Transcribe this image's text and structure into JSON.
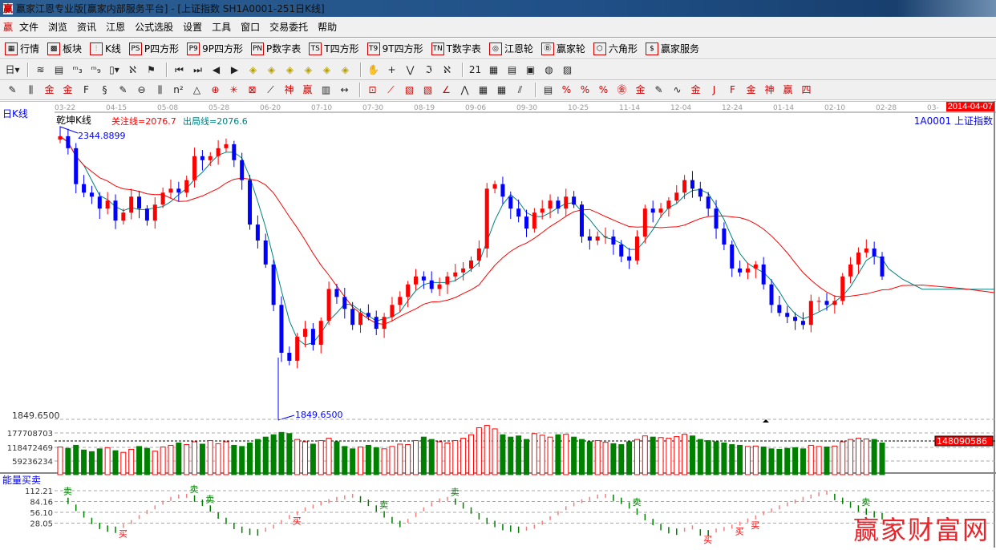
{
  "window": {
    "title": "赢家江恩专业版[赢家内部服务平台] - [上证指数  SH1A0001-251日K线]",
    "logo": "赢"
  },
  "menu": {
    "logo": "赢",
    "items": [
      "文件",
      "浏览",
      "资讯",
      "江恩",
      "公式选股",
      "设置",
      "工具",
      "窗口",
      "交易委托",
      "帮助"
    ]
  },
  "toolbar1": [
    {
      "icon": "quote-grid-icon",
      "glyph": "▦",
      "label": "行情"
    },
    {
      "icon": "sector-icon",
      "glyph": "▩",
      "label": "板块"
    },
    {
      "icon": "kline-icon",
      "glyph": "⫶",
      "label": "K线"
    },
    {
      "icon": "ps-icon",
      "glyph": "PS",
      "label": "P四方形"
    },
    {
      "icon": "p9-icon",
      "glyph": "P9",
      "label": "9P四方形"
    },
    {
      "icon": "pn-icon",
      "glyph": "PN",
      "label": "P数字表"
    },
    {
      "icon": "ts-icon",
      "glyph": "TS",
      "label": "T四方形"
    },
    {
      "icon": "t9-icon",
      "glyph": "T9",
      "label": "9T四方形"
    },
    {
      "icon": "tn-icon",
      "glyph": "TN",
      "label": "T数字表"
    },
    {
      "icon": "gann-wheel-icon",
      "glyph": "◎",
      "label": "江恩轮"
    },
    {
      "icon": "big-wheel-icon",
      "glyph": "Ⓑ",
      "label": "赢家轮"
    },
    {
      "icon": "hexagon-icon",
      "glyph": "⬡",
      "label": "六角形"
    },
    {
      "icon": "dollar-icon",
      "glyph": "$",
      "label": "赢家服务"
    }
  ],
  "toolbar2": [
    {
      "icon": "period-day-icon",
      "glyph": "日▾"
    },
    {
      "sep": true
    },
    {
      "icon": "chart-style-icon",
      "glyph": "≋"
    },
    {
      "icon": "notes-icon",
      "glyph": "▤"
    },
    {
      "icon": "wave3-icon",
      "glyph": "ᵐ₃"
    },
    {
      "icon": "wave9-icon",
      "glyph": "ᵐ₉"
    },
    {
      "icon": "candle-type-icon",
      "glyph": "▯▾"
    },
    {
      "icon": "map-icon",
      "glyph": "ℵ"
    },
    {
      "icon": "flag-icon",
      "glyph": "⚑"
    },
    {
      "sep": true
    },
    {
      "icon": "first-icon",
      "glyph": "⏮"
    },
    {
      "icon": "last-icon",
      "glyph": "⏭"
    },
    {
      "icon": "prev-icon",
      "glyph": "◀"
    },
    {
      "icon": "next-icon",
      "glyph": "▶"
    },
    {
      "icon": "shift-left-icon",
      "glyph": "◈"
    },
    {
      "icon": "shift-right-icon",
      "glyph": "◈"
    },
    {
      "icon": "zoom-h-icon",
      "glyph": "◈"
    },
    {
      "icon": "shrink-h-icon",
      "glyph": "◈"
    },
    {
      "icon": "zoom-all-icon",
      "glyph": "◈"
    },
    {
      "icon": "zoom-v-icon",
      "glyph": "◈"
    },
    {
      "sep": true
    },
    {
      "icon": "hand-icon",
      "glyph": "✋"
    },
    {
      "icon": "crosshair-icon",
      "glyph": "+"
    },
    {
      "icon": "wave-mark-icon",
      "glyph": "⋁"
    },
    {
      "icon": "formula-icon",
      "glyph": "ℑ"
    },
    {
      "icon": "pattern-icon",
      "glyph": "ℵ"
    },
    {
      "sep": true
    },
    {
      "icon": "calendar-icon",
      "glyph": "21"
    },
    {
      "icon": "calculator-icon",
      "glyph": "▦"
    },
    {
      "icon": "document-icon",
      "glyph": "▤"
    },
    {
      "icon": "save-icon",
      "glyph": "▣"
    },
    {
      "icon": "network-icon",
      "glyph": "◍"
    },
    {
      "icon": "print-icon",
      "glyph": "▨"
    }
  ],
  "toolbar3": [
    {
      "icon": "pen-icon",
      "glyph": "✎"
    },
    {
      "icon": "parallel-lines-icon",
      "glyph": "⫼"
    },
    {
      "icon": "gold-lines-icon",
      "glyph": "金"
    },
    {
      "icon": "gold-lines2-icon",
      "glyph": "金"
    },
    {
      "icon": "fib-lines-icon",
      "glyph": "F"
    },
    {
      "icon": "spiral-lines-icon",
      "glyph": "§"
    },
    {
      "icon": "pen-ruler-icon",
      "glyph": "✎"
    },
    {
      "icon": "circle-lines-icon",
      "glyph": "⊖"
    },
    {
      "icon": "quad-lines-icon",
      "glyph": "⫼"
    },
    {
      "icon": "n2-lines-icon",
      "glyph": "n²"
    },
    {
      "icon": "triangle-icon",
      "glyph": "△"
    },
    {
      "icon": "target-icon",
      "glyph": "⊕"
    },
    {
      "icon": "web-icon",
      "glyph": "✳"
    },
    {
      "icon": "web-grid-icon",
      "glyph": "⊠"
    },
    {
      "icon": "angle-line-icon",
      "glyph": "⟋"
    },
    {
      "icon": "shen-lines-icon",
      "glyph": "神"
    },
    {
      "icon": "ying-lines-icon",
      "glyph": "赢"
    },
    {
      "icon": "ruler-123-icon",
      "glyph": "▥"
    },
    {
      "icon": "measure-icon",
      "glyph": "↔"
    },
    {
      "sep": true
    },
    {
      "icon": "box-icon",
      "glyph": "⊡"
    },
    {
      "icon": "fan-icon",
      "glyph": "⟋"
    },
    {
      "icon": "gann-box-icon",
      "glyph": "▧"
    },
    {
      "icon": "gann-box2-icon",
      "glyph": "▧"
    },
    {
      "icon": "angle-fan-icon",
      "glyph": "∠"
    },
    {
      "icon": "zigzag-icon",
      "glyph": "⋀"
    },
    {
      "icon": "grid-icon",
      "glyph": "▦"
    },
    {
      "icon": "grid2-icon",
      "glyph": "▦"
    },
    {
      "icon": "channel-icon",
      "glyph": "⫽"
    },
    {
      "sep": true
    },
    {
      "icon": "scale-icon",
      "glyph": "▤"
    },
    {
      "icon": "percent-fan-icon",
      "glyph": "%"
    },
    {
      "icon": "percent-icon",
      "glyph": "%"
    },
    {
      "icon": "percent-lines-icon",
      "glyph": "%"
    },
    {
      "icon": "gold-circle-icon",
      "glyph": "㊎"
    },
    {
      "icon": "gold-lines3-icon",
      "glyph": "金"
    },
    {
      "icon": "pen-bar-icon",
      "glyph": "✎"
    },
    {
      "icon": "sine-icon",
      "glyph": "∿"
    },
    {
      "icon": "gold-red-icon",
      "glyph": "金"
    },
    {
      "icon": "j-fan-icon",
      "glyph": "J"
    },
    {
      "icon": "f-fan-icon",
      "glyph": "F"
    },
    {
      "icon": "gold-fan-icon",
      "glyph": "金"
    },
    {
      "icon": "shen-fan-icon",
      "glyph": "神"
    },
    {
      "icon": "ying-fan-icon",
      "glyph": "赢"
    },
    {
      "icon": "four-fan-icon",
      "glyph": "四"
    }
  ],
  "chart": {
    "period_label": "日K线",
    "indicator_name": "乾坤K线",
    "focus_line": "关注线=2076.7",
    "exit_line": "出局线=2076.6",
    "symbol_label": "1A0001  上证指数",
    "current_date": "2014-04-07",
    "date_ticks": [
      "03-22",
      "04-15",
      "05-08",
      "05-28",
      "06-20",
      "07-10",
      "07-30",
      "08-19",
      "09-06",
      "09-30",
      "10-25",
      "11-14",
      "12-04",
      "12-24",
      "01-14",
      "02-10",
      "02-28",
      "03-"
    ],
    "high_label": "2344.8899",
    "low_label": "1849.6500",
    "price_axis_label": "1849.6500",
    "colors": {
      "up": "#ff0000",
      "down": "#0000ff",
      "ma_short": "#008080",
      "ma_long": "#ff0000",
      "title_bg": "#1f4f86"
    }
  },
  "chart_data": [
    {
      "type": "candlestick",
      "title": "乾坤K线",
      "ylim": [
        1849.65,
        2344.89
      ],
      "high": 2344.8899,
      "low": 1849.65,
      "close": [
        2345,
        2324,
        2261,
        2246,
        2239,
        2218,
        2232,
        2197,
        2211,
        2239,
        2218,
        2197,
        2225,
        2246,
        2253,
        2246,
        2268,
        2310,
        2303,
        2310,
        2324,
        2331,
        2303,
        2268,
        2190,
        2162,
        2120,
        2049,
        1965,
        1951,
        1993,
        2007,
        1979,
        2021,
        2077,
        2063,
        2042,
        2014,
        2035,
        2028,
        2007,
        2028,
        2049,
        2063,
        2085,
        2099,
        2092,
        2077,
        2085,
        2099,
        2106,
        2113,
        2127,
        2148,
        2253,
        2261,
        2239,
        2218,
        2204,
        2183,
        2211,
        2218,
        2232,
        2218,
        2239,
        2225,
        2169,
        2162,
        2169,
        2169,
        2155,
        2134,
        2127,
        2169,
        2218,
        2211,
        2218,
        2232,
        2246,
        2268,
        2253,
        2239,
        2218,
        2183,
        2155,
        2113,
        2106,
        2113,
        2120,
        2085,
        2049,
        2035,
        2028,
        2021,
        2014,
        2056,
        2056,
        2049,
        2056,
        2099,
        2120,
        2141,
        2148,
        2134,
        2099
      ],
      "ma_lines": [
        {
          "name": "出局线",
          "value": 2076.6
        },
        {
          "name": "关注线",
          "value": 2076.7
        }
      ]
    },
    {
      "type": "bar",
      "title": "volume",
      "yticks": [
        177708703,
        118472469,
        59236234
      ],
      "current": 148090586,
      "values": [
        118,
        112,
        125,
        105,
        98,
        110,
        115,
        102,
        95,
        108,
        120,
        112,
        100,
        118,
        125,
        135,
        128,
        140,
        130,
        145,
        132,
        140,
        125,
        120,
        135,
        150,
        160,
        170,
        180,
        175,
        150,
        140,
        130,
        145,
        155,
        140,
        120,
        110,
        118,
        125,
        115,
        110,
        120,
        130,
        128,
        145,
        160,
        150,
        140,
        135,
        145,
        155,
        170,
        200,
        210,
        195,
        170,
        160,
        165,
        150,
        175,
        168,
        160,
        170,
        172,
        160,
        150,
        140,
        145,
        138,
        132,
        128,
        140,
        150,
        165,
        160,
        158,
        155,
        162,
        172,
        165,
        150,
        145,
        140,
        135,
        128,
        125,
        120,
        122,
        118,
        110,
        108,
        112,
        115,
        110,
        125,
        120,
        118,
        122,
        140,
        150,
        155,
        152,
        150,
        135
      ]
    },
    {
      "type": "line",
      "title": "能量买卖",
      "yticks": [
        112.21,
        84.16,
        56.1,
        28.05
      ],
      "values": [
        100,
        90,
        72,
        55,
        38,
        25,
        18,
        15,
        22,
        32,
        45,
        58,
        70,
        82,
        92,
        98,
        100,
        96,
        85,
        70,
        52,
        38,
        25,
        15,
        10,
        8,
        12,
        20,
        32,
        45,
        55,
        65,
        72,
        80,
        86,
        92,
        96,
        100,
        94,
        85,
        70,
        55,
        40,
        30,
        35,
        50,
        65,
        78,
        88,
        92,
        88,
        78,
        65,
        50,
        38,
        30,
        22,
        18,
        15,
        15,
        20,
        30,
        42,
        55,
        68,
        78,
        86,
        92,
        98,
        100,
        98,
        90,
        78,
        62,
        48,
        35,
        22,
        14,
        10,
        12,
        18,
        8,
        6,
        10,
        14,
        20,
        28,
        36,
        44,
        55,
        62,
        70,
        78,
        85,
        92,
        98,
        104,
        108,
        100,
        90,
        80,
        70,
        62,
        55,
        50
      ],
      "sell_signals": [
        1,
        17,
        19,
        41,
        50,
        73,
        102
      ],
      "buy_signals": [
        8,
        30,
        82,
        86,
        88
      ]
    }
  ],
  "lower_panel": {
    "title": "能量买卖",
    "sell_label": "卖",
    "buy_label": "买"
  },
  "watermark": "赢家财富网"
}
